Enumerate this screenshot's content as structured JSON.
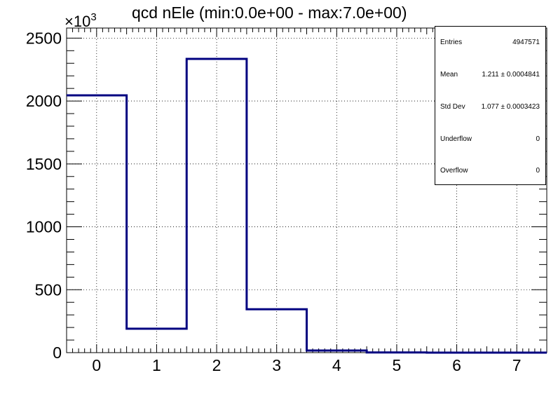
{
  "chart_data": {
    "type": "histogram",
    "title": "qcd nEle (min:0.0e+00 - max:7.0e+00)",
    "y_multiplier": "×10",
    "y_multiplier_exp": "3",
    "xlabel": "",
    "ylabel": "",
    "xlim": [
      -0.5,
      7.5
    ],
    "ylim": [
      0,
      2580
    ],
    "x_ticks": [
      "0",
      "1",
      "2",
      "3",
      "4",
      "5",
      "6",
      "7"
    ],
    "y_ticks": [
      "0",
      "500",
      "1000",
      "1500",
      "2000",
      "2500"
    ],
    "grid": true,
    "bins": [
      {
        "x": 0,
        "value": 2045
      },
      {
        "x": 1,
        "value": 190
      },
      {
        "x": 2,
        "value": 2335
      },
      {
        "x": 3,
        "value": 345
      },
      {
        "x": 4,
        "value": 17
      },
      {
        "x": 5,
        "value": 1.5
      },
      {
        "x": 6,
        "value": 0.2
      },
      {
        "x": 7,
        "value": 0.02
      }
    ],
    "line_color": "#000080"
  },
  "stats": [
    {
      "label": "Entries",
      "value": "4947571"
    },
    {
      "label": "Mean",
      "value": "1.211 ± 0.0004841"
    },
    {
      "label": "Std Dev",
      "value": "1.077 ± 0.0003423"
    },
    {
      "label": "Underflow",
      "value": "0"
    },
    {
      "label": "Overflow",
      "value": "0"
    }
  ]
}
